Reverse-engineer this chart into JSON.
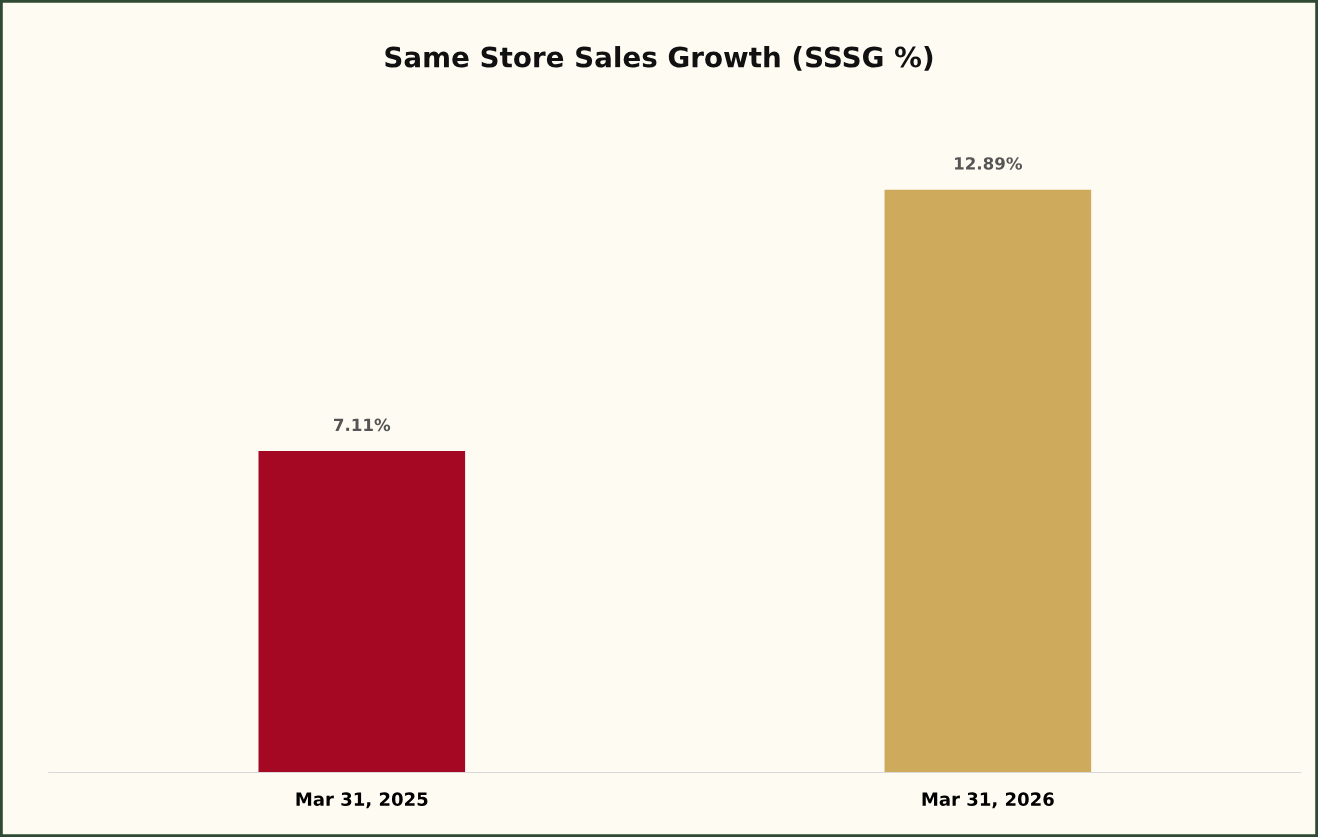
{
  "chart_data": {
    "type": "bar",
    "title": "Same Store Sales Growth (SSSG %)",
    "categories": [
      "Mar 31, 2025",
      "Mar 31, 2026"
    ],
    "values": [
      7.11,
      12.89
    ],
    "colors": [
      "#a50822",
      "#cdaa5c"
    ],
    "value_labels": [
      "7.11%",
      "12.89%"
    ]
  }
}
